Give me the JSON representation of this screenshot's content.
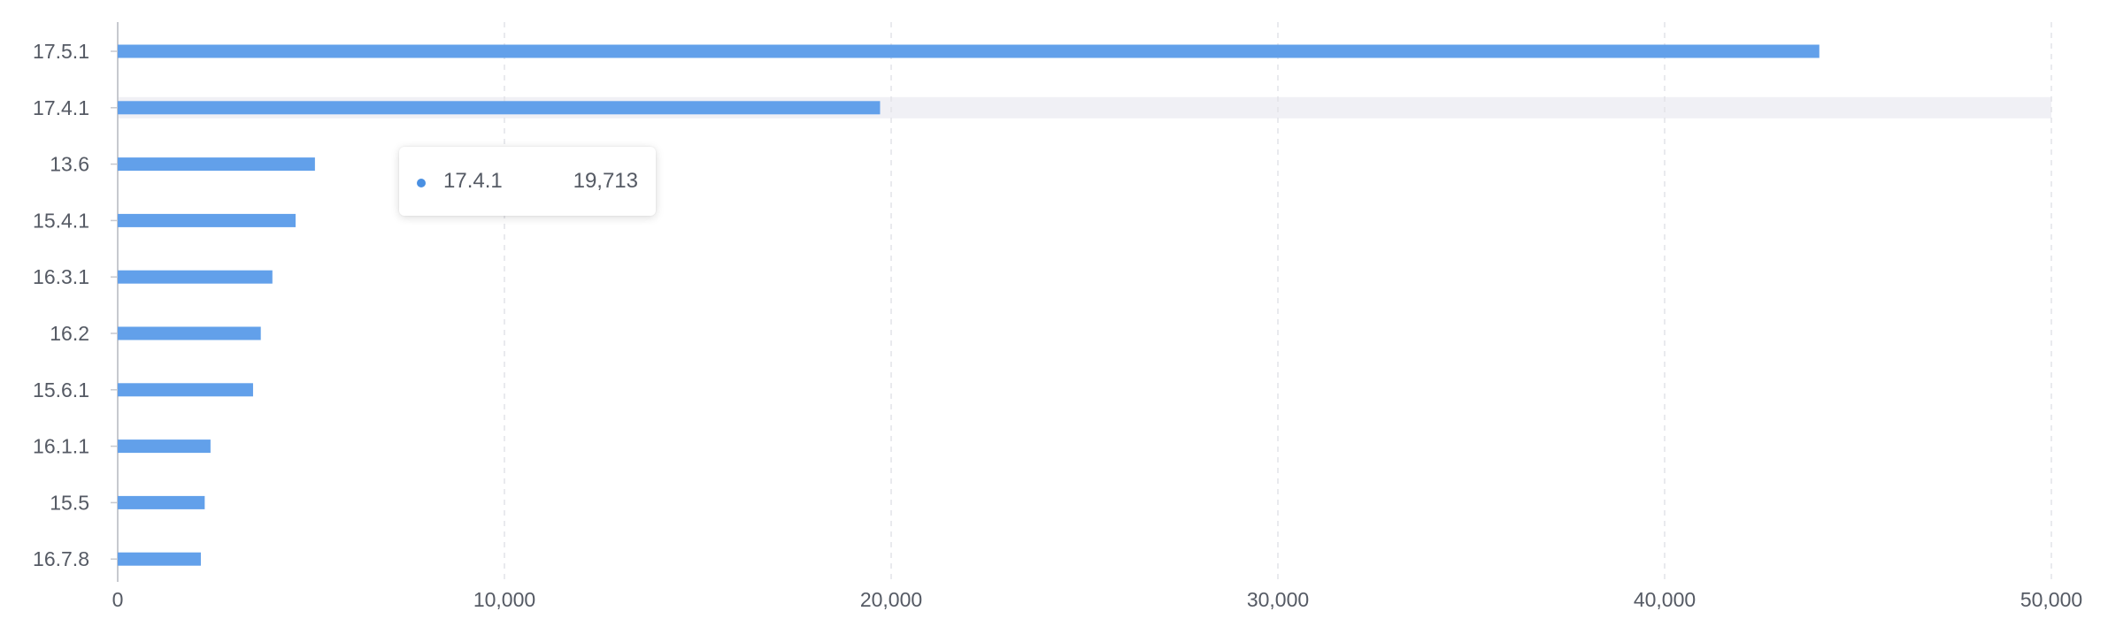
{
  "chart_data": {
    "type": "bar",
    "orientation": "horizontal",
    "categories": [
      "17.5.1",
      "17.4.1",
      "13.6",
      "15.4.1",
      "16.3.1",
      "16.2",
      "15.6.1",
      "16.1.1",
      "15.5",
      "16.7.8"
    ],
    "values": [
      44000,
      19713,
      5100,
      4600,
      4000,
      3700,
      3500,
      2400,
      2250,
      2150
    ],
    "xlim": [
      0,
      50000
    ],
    "xticks": [
      "0",
      "10,000",
      "20,000",
      "30,000",
      "40,000",
      "50,000"
    ],
    "xtick_values": [
      0,
      10000,
      20000,
      30000,
      40000,
      50000
    ],
    "grid": "vertical-dashed",
    "highlighted_category": "17.4.1"
  },
  "colors": {
    "bar": "#62a0ea",
    "highlight_band": "#f0f0f5",
    "grid": "#e2e3e8",
    "axis": "#c7c9cf",
    "tooltip_marker": "#4a90e2"
  },
  "tooltip": {
    "label": "17.4.1",
    "value": "19,713"
  }
}
